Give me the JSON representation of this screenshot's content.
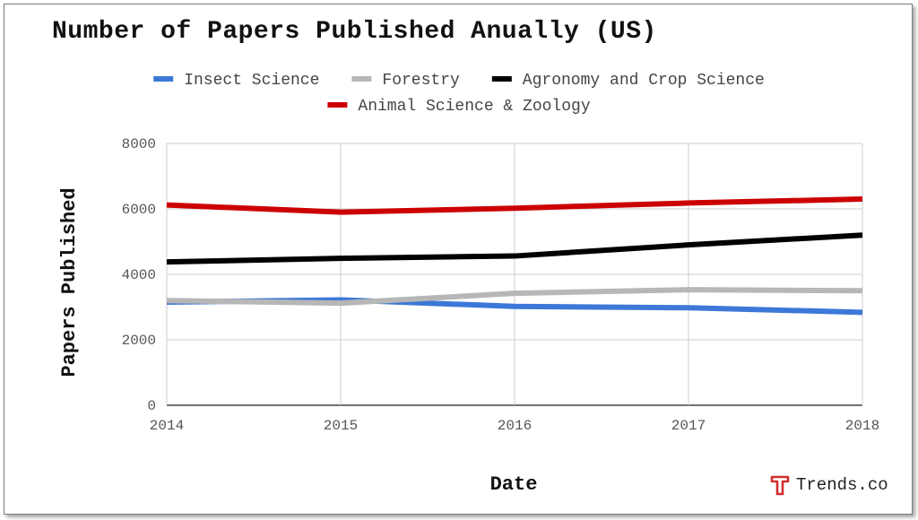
{
  "chart_data": {
    "type": "line",
    "title": "Number of Papers Published Anually (US)",
    "xlabel": "Date",
    "ylabel": "Papers Published",
    "x": [
      "2014",
      "2015",
      "2016",
      "2017",
      "2018"
    ],
    "ylim": [
      0,
      8000
    ],
    "yticks": [
      "0",
      "2000",
      "4000",
      "6000",
      "8000"
    ],
    "grid": true,
    "legend_position": "top",
    "series": [
      {
        "name": "Insect Science",
        "color": "#3c78d8",
        "values": [
          3150,
          3220,
          3020,
          2980,
          2840
        ]
      },
      {
        "name": "Forestry",
        "color": "#b7b7b7",
        "values": [
          3200,
          3120,
          3420,
          3530,
          3500
        ]
      },
      {
        "name": "Agronomy and Crop Science",
        "color": "#000000",
        "values": [
          4380,
          4490,
          4560,
          4900,
          5200
        ]
      },
      {
        "name": "Animal Science & Zoology",
        "color": "#cc0000",
        "values": [
          6120,
          5900,
          6020,
          6180,
          6300
        ]
      }
    ]
  },
  "brand": {
    "text": "Trends.co",
    "icon": "trends-logo-icon",
    "color": "#d32f2f"
  }
}
